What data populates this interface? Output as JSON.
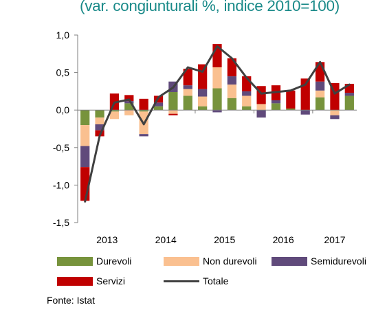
{
  "chart_data": {
    "type": "bar",
    "stacked": true,
    "subtitle": "(var. congiunturali %, indice 2010=100)",
    "source": "Fonte: Istat",
    "ylim": [
      -1.5,
      1.0
    ],
    "yticks": [
      "1,0",
      "0,5",
      "0,0",
      "-0,5",
      "-1,0",
      "-1,5"
    ],
    "ytick_values": [
      1.0,
      0.5,
      0.0,
      -0.5,
      -1.0,
      -1.5
    ],
    "year_labels": [
      "2013",
      "2014",
      "2015",
      "2016",
      "2017"
    ],
    "grid": false,
    "legend_position": "bottom",
    "series": [
      {
        "name": "Durevoli",
        "color": "#77933c",
        "values": [
          -0.2,
          -0.1,
          -0.02,
          0.09,
          -0.02,
          0.05,
          0.24,
          0.19,
          0.05,
          0.29,
          0.16,
          0.05,
          0.0,
          0.09,
          0.02,
          0.0,
          0.17,
          0.0,
          0.19
        ]
      },
      {
        "name": "Non durevoli",
        "color": "#fac090",
        "values": [
          -0.28,
          -0.09,
          -0.1,
          -0.07,
          -0.3,
          0.0,
          -0.05,
          0.09,
          0.13,
          0.28,
          0.18,
          0.14,
          0.08,
          0.0,
          0.0,
          0.0,
          0.09,
          -0.07,
          0.0
        ]
      },
      {
        "name": "Semidurevoli",
        "color": "#604a7b",
        "values": [
          -0.28,
          -0.08,
          0.0,
          0.03,
          -0.03,
          0.05,
          0.14,
          0.05,
          0.1,
          -0.03,
          0.11,
          0.06,
          -0.1,
          0.04,
          0.0,
          -0.06,
          0.12,
          -0.05,
          0.04
        ]
      },
      {
        "name": "Servizi",
        "color": "#c00000",
        "values": [
          -0.45,
          -0.08,
          0.22,
          0.08,
          0.15,
          0.09,
          -0.02,
          0.22,
          0.33,
          0.31,
          0.24,
          0.2,
          0.24,
          0.2,
          0.24,
          0.42,
          0.26,
          0.36,
          0.12
        ]
      },
      {
        "name": "Totale",
        "type": "line",
        "color": "#404040",
        "values": [
          -1.22,
          -0.34,
          0.1,
          0.14,
          -0.19,
          0.17,
          0.3,
          0.57,
          0.51,
          0.85,
          0.69,
          0.43,
          0.22,
          0.24,
          0.26,
          0.34,
          0.64,
          0.22,
          0.34
        ]
      }
    ]
  }
}
